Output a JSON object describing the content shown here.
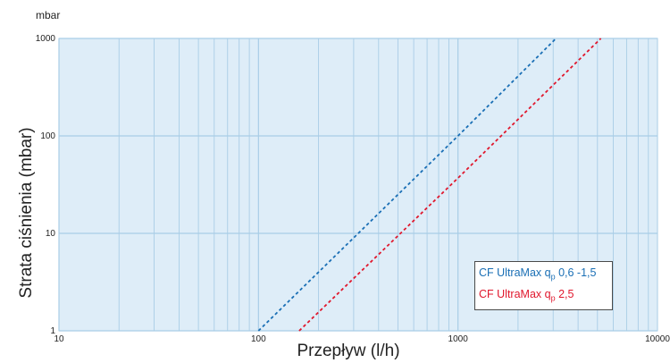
{
  "y_unit_label": "mbar",
  "chart_data": {
    "type": "line",
    "xlabel": "Przepływ (l/h)",
    "ylabel": "Strata ciśnienia (mbar)",
    "x_scale": "log",
    "y_scale": "log",
    "xlim": [
      10,
      10000
    ],
    "ylim": [
      1,
      1000
    ],
    "x_ticks": [
      "10",
      "100",
      "1000",
      "10000"
    ],
    "y_ticks": [
      "1",
      "10",
      "100",
      "1000"
    ],
    "grid": true,
    "legend_position": "bottom-right",
    "series": [
      {
        "legend_prefix": "CF UltraMax q",
        "legend_sub": "p",
        "legend_suffix": " 0,6 -1,5",
        "color": "#1a6fb5",
        "style": "dotted",
        "x": [
          100,
          1000,
          3100
        ],
        "y": [
          1,
          100,
          1000
        ]
      },
      {
        "legend_prefix": "CF UltraMax q",
        "legend_sub": "p",
        "legend_suffix": " 2,5",
        "color": "#e0182d",
        "style": "dotted",
        "x": [
          160,
          1000,
          5200
        ],
        "y": [
          1,
          37,
          1000
        ]
      }
    ]
  }
}
